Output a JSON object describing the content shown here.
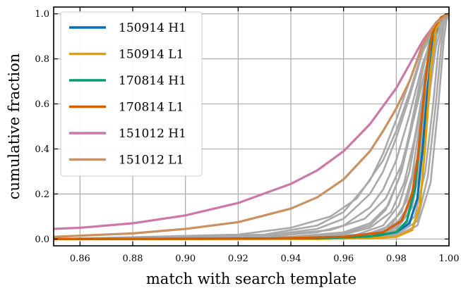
{
  "chart_data": {
    "type": "line",
    "title": "",
    "xlabel": "match with search template",
    "ylabel": "cumulative fraction",
    "xlim": [
      0.85,
      1.0
    ],
    "ylim": [
      -0.03,
      1.03
    ],
    "xticks": [
      "0.86",
      "0.88",
      "0.90",
      "0.92",
      "0.94",
      "0.96",
      "0.98",
      "1.00"
    ],
    "yticks": [
      "0.0",
      "0.2",
      "0.4",
      "0.6",
      "0.8",
      "1.0"
    ],
    "grid": true,
    "legend_position": "top-left",
    "series": [
      {
        "name": "150914 H1",
        "color": "#0072b2",
        "x": [
          0.85,
          0.95,
          0.97,
          0.98,
          0.985,
          0.988,
          0.99,
          0.992,
          0.994,
          0.996,
          0.998,
          1.0
        ],
        "y": [
          0.0,
          0.002,
          0.01,
          0.03,
          0.07,
          0.18,
          0.4,
          0.68,
          0.88,
          0.96,
          0.99,
          1.0
        ]
      },
      {
        "name": "150914 L1",
        "color": "#e69f00",
        "x": [
          0.85,
          0.95,
          0.97,
          0.98,
          0.986,
          0.989,
          0.991,
          0.993,
          0.995,
          0.997,
          0.999,
          1.0
        ],
        "y": [
          0.0,
          0.001,
          0.004,
          0.01,
          0.04,
          0.15,
          0.42,
          0.75,
          0.93,
          0.98,
          0.995,
          1.0
        ]
      },
      {
        "name": "170814 H1",
        "color": "#009e73",
        "x": [
          0.85,
          0.95,
          0.97,
          0.98,
          0.984,
          0.987,
          0.989,
          0.991,
          0.993,
          0.995,
          0.998,
          1.0
        ],
        "y": [
          0.0,
          0.003,
          0.012,
          0.03,
          0.08,
          0.22,
          0.45,
          0.7,
          0.88,
          0.96,
          0.99,
          1.0
        ]
      },
      {
        "name": "170814 L1",
        "color": "#d55e00",
        "x": [
          0.85,
          0.93,
          0.96,
          0.975,
          0.982,
          0.986,
          0.988,
          0.99,
          0.992,
          0.994,
          0.997,
          1.0
        ],
        "y": [
          0.0,
          0.002,
          0.01,
          0.03,
          0.08,
          0.2,
          0.35,
          0.58,
          0.8,
          0.93,
          0.985,
          1.0
        ]
      },
      {
        "name": "151012 H1",
        "color": "#cc79a7",
        "x": [
          0.85,
          0.86,
          0.88,
          0.9,
          0.92,
          0.94,
          0.95,
          0.96,
          0.97,
          0.98,
          0.99,
          0.995,
          1.0
        ],
        "y": [
          0.045,
          0.05,
          0.07,
          0.105,
          0.16,
          0.245,
          0.305,
          0.39,
          0.51,
          0.67,
          0.88,
          0.96,
          1.0
        ]
      },
      {
        "name": "151012 L1",
        "color": "#ca9161",
        "x": [
          0.85,
          0.86,
          0.88,
          0.9,
          0.92,
          0.94,
          0.95,
          0.96,
          0.97,
          0.975,
          0.98,
          0.985,
          0.99,
          0.995,
          1.0
        ],
        "y": [
          0.01,
          0.015,
          0.025,
          0.045,
          0.075,
          0.135,
          0.185,
          0.265,
          0.39,
          0.48,
          0.58,
          0.7,
          0.86,
          0.96,
          1.0
        ]
      }
    ],
    "background_series": {
      "color": "#a9a9a9",
      "lines": [
        {
          "x": [
            0.85,
            0.93,
            0.95,
            0.96,
            0.97,
            0.975,
            0.98,
            0.985,
            0.99,
            0.995,
            1.0
          ],
          "y": [
            0.0,
            0.01,
            0.03,
            0.06,
            0.14,
            0.22,
            0.35,
            0.55,
            0.78,
            0.94,
            1.0
          ]
        },
        {
          "x": [
            0.85,
            0.93,
            0.95,
            0.96,
            0.97,
            0.975,
            0.98,
            0.985,
            0.99,
            0.995,
            1.0
          ],
          "y": [
            0.0,
            0.015,
            0.045,
            0.09,
            0.2,
            0.3,
            0.45,
            0.63,
            0.83,
            0.95,
            1.0
          ]
        },
        {
          "x": [
            0.85,
            0.93,
            0.95,
            0.96,
            0.97,
            0.975,
            0.98,
            0.985,
            0.99,
            0.995,
            1.0
          ],
          "y": [
            0.0,
            0.02,
            0.06,
            0.12,
            0.26,
            0.38,
            0.53,
            0.7,
            0.87,
            0.96,
            1.0
          ]
        },
        {
          "x": [
            0.85,
            0.92,
            0.94,
            0.955,
            0.965,
            0.975,
            0.98,
            0.985,
            0.99,
            0.995,
            1.0
          ],
          "y": [
            0.0,
            0.02,
            0.05,
            0.1,
            0.18,
            0.35,
            0.48,
            0.65,
            0.84,
            0.95,
            1.0
          ]
        },
        {
          "x": [
            0.85,
            0.94,
            0.96,
            0.97,
            0.978,
            0.983,
            0.987,
            0.99,
            0.993,
            0.996,
            1.0
          ],
          "y": [
            0.0,
            0.005,
            0.02,
            0.05,
            0.12,
            0.25,
            0.45,
            0.65,
            0.85,
            0.95,
            1.0
          ]
        },
        {
          "x": [
            0.85,
            0.95,
            0.965,
            0.975,
            0.981,
            0.985,
            0.988,
            0.991,
            0.994,
            0.997,
            1.0
          ],
          "y": [
            0.0,
            0.005,
            0.02,
            0.06,
            0.15,
            0.3,
            0.5,
            0.72,
            0.9,
            0.97,
            1.0
          ]
        },
        {
          "x": [
            0.85,
            0.95,
            0.965,
            0.975,
            0.982,
            0.986,
            0.989,
            0.992,
            0.995,
            0.998,
            1.0
          ],
          "y": [
            0.0,
            0.003,
            0.015,
            0.04,
            0.12,
            0.28,
            0.52,
            0.76,
            0.92,
            0.98,
            1.0
          ]
        },
        {
          "x": [
            0.85,
            0.95,
            0.965,
            0.975,
            0.983,
            0.987,
            0.99,
            0.993,
            0.995,
            0.998,
            1.0
          ],
          "y": [
            0.0,
            0.002,
            0.01,
            0.03,
            0.1,
            0.25,
            0.5,
            0.78,
            0.9,
            0.97,
            1.0
          ]
        },
        {
          "x": [
            0.85,
            0.95,
            0.97,
            0.98,
            0.986,
            0.99,
            0.993,
            0.995,
            0.997,
            0.999,
            1.0
          ],
          "y": [
            0.0,
            0.002,
            0.01,
            0.04,
            0.14,
            0.38,
            0.68,
            0.85,
            0.94,
            0.99,
            1.0
          ]
        },
        {
          "x": [
            0.85,
            0.95,
            0.97,
            0.98,
            0.986,
            0.99,
            0.993,
            0.995,
            0.997,
            0.999,
            1.0
          ],
          "y": [
            0.0,
            0.003,
            0.012,
            0.05,
            0.16,
            0.45,
            0.75,
            0.9,
            0.96,
            0.99,
            1.0
          ]
        },
        {
          "x": [
            0.85,
            0.94,
            0.96,
            0.97,
            0.977,
            0.982,
            0.986,
            0.99,
            0.993,
            0.996,
            1.0
          ],
          "y": [
            0.0,
            0.01,
            0.03,
            0.07,
            0.15,
            0.3,
            0.5,
            0.75,
            0.9,
            0.97,
            1.0
          ]
        },
        {
          "x": [
            0.85,
            0.94,
            0.96,
            0.97,
            0.976,
            0.981,
            0.985,
            0.989,
            0.993,
            0.996,
            1.0
          ],
          "y": [
            0.0,
            0.008,
            0.025,
            0.06,
            0.13,
            0.27,
            0.47,
            0.7,
            0.89,
            0.96,
            1.0
          ]
        },
        {
          "x": [
            0.85,
            0.95,
            0.97,
            0.979,
            0.985,
            0.989,
            0.992,
            0.994,
            0.996,
            0.998,
            1.0
          ],
          "y": [
            0.0,
            0.004,
            0.015,
            0.05,
            0.15,
            0.35,
            0.6,
            0.82,
            0.95,
            0.99,
            1.0
          ]
        },
        {
          "x": [
            0.85,
            0.95,
            0.97,
            0.98,
            0.987,
            0.991,
            0.994,
            0.996,
            0.998,
            0.999,
            1.0
          ],
          "y": [
            0.0,
            0.002,
            0.008,
            0.03,
            0.1,
            0.3,
            0.6,
            0.85,
            0.96,
            0.99,
            1.0
          ]
        },
        {
          "x": [
            0.85,
            0.95,
            0.97,
            0.98,
            0.988,
            0.992,
            0.995,
            0.997,
            0.998,
            0.999,
            1.0
          ],
          "y": [
            0.0,
            0.001,
            0.005,
            0.02,
            0.08,
            0.28,
            0.6,
            0.85,
            0.95,
            0.99,
            1.0
          ]
        },
        {
          "x": [
            0.85,
            0.95,
            0.97,
            0.98,
            0.988,
            0.993,
            0.996,
            0.998,
            0.999,
            1.0
          ],
          "y": [
            0.0,
            0.001,
            0.004,
            0.015,
            0.06,
            0.25,
            0.6,
            0.88,
            0.97,
            1.0
          ]
        },
        {
          "x": [
            0.85,
            0.93,
            0.955,
            0.968,
            0.976,
            0.982,
            0.987,
            0.991,
            0.995,
            0.998,
            1.0
          ],
          "y": [
            0.0,
            0.012,
            0.04,
            0.09,
            0.18,
            0.33,
            0.55,
            0.75,
            0.91,
            0.98,
            1.0
          ]
        },
        {
          "x": [
            0.85,
            0.95,
            0.968,
            0.978,
            0.984,
            0.988,
            0.991,
            0.994,
            0.996,
            0.998,
            1.0
          ],
          "y": [
            0.0,
            0.004,
            0.018,
            0.06,
            0.17,
            0.36,
            0.62,
            0.84,
            0.94,
            0.98,
            1.0
          ]
        }
      ]
    }
  }
}
